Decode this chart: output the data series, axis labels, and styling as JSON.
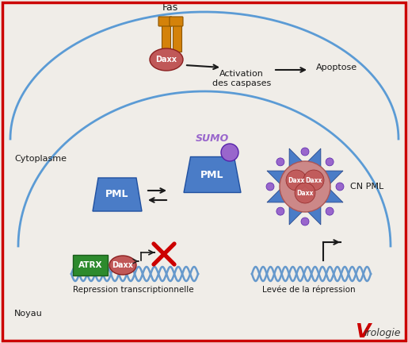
{
  "bg_color": "#f0ede8",
  "border_color": "#cc0000",
  "cell_membrane_color": "#5b9bd5",
  "pml_color": "#4a7cc7",
  "daxx_color": "#c05858",
  "atrx_color": "#2d8a2d",
  "sumo_color": "#9966cc",
  "fas_color": "#d4820a",
  "dna_color": "#6699cc",
  "cross_color": "#cc0000",
  "arrow_color": "#1a1a1a",
  "text_color": "#1a1a1a",
  "labels": {
    "fas": "Fas",
    "activation": "Activation\ndes caspases",
    "apoptose": "Apoptose",
    "cytoplasme": "Cytoplasme",
    "noyau": "Noyau",
    "sumo": "SUMO",
    "pml": "PML",
    "cn_pml": "CN PML",
    "daxx": "Daxx",
    "atrx": "ATRX",
    "repression": "Repression transcriptionnelle",
    "levee": "Levée de la répression"
  }
}
